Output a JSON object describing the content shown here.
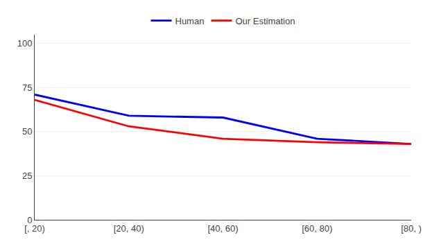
{
  "chart_data": {
    "type": "line",
    "categories": [
      "[, 20)",
      "[20, 40)",
      "[40, 60)",
      "[60, 80)",
      "[80, )"
    ],
    "series": [
      {
        "name": "Human",
        "color": "#0000FF",
        "values": [
          71,
          59,
          58,
          46,
          43
        ]
      },
      {
        "name": "Our Estimation",
        "color": "#FF0000",
        "values": [
          68,
          53,
          46,
          44,
          43
        ]
      }
    ],
    "ylim": [
      0,
      105
    ],
    "yticks": [
      0,
      25,
      50,
      75,
      100
    ],
    "grid": true,
    "legend": "top"
  }
}
